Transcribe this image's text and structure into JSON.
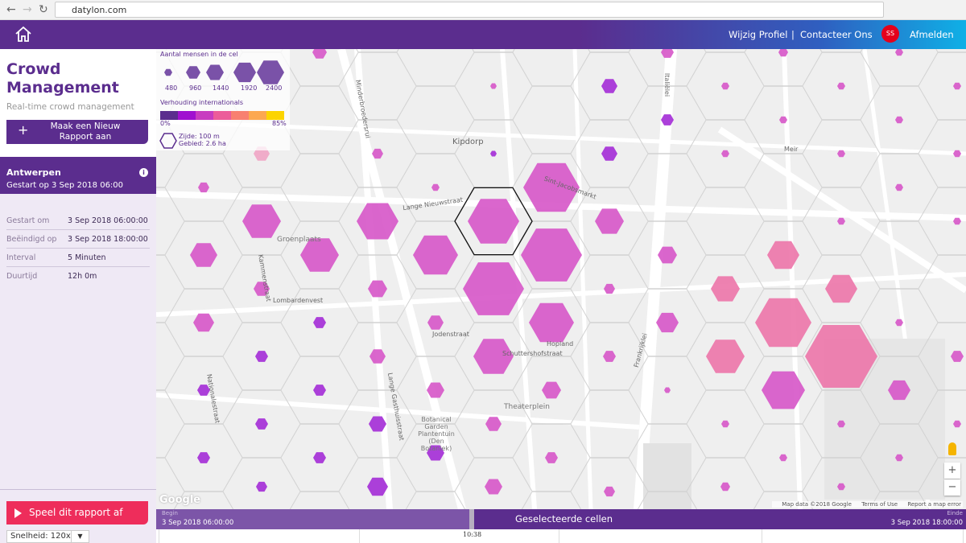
{
  "browser": {
    "url": "datylon.com"
  },
  "header": {
    "home_icon": "home-icon",
    "edit_profile": "Wijzig Profiel",
    "separator": "|",
    "contact": "Contacteer Ons",
    "avatar_initials": "SS",
    "logout": "Afmelden",
    "accent": "#5b2d8e",
    "avatar_color": "#e4001b"
  },
  "sidebar": {
    "title": "Crowd Management",
    "subtitle": "Real-time crowd management",
    "new_report_plus": "+",
    "new_report_label": "Maak een Nieuw Rapport aan",
    "report": {
      "city": "Antwerpen",
      "started": "Gestart op 3 Sep 2018 06:00",
      "info_icon": "i"
    },
    "meta": [
      {
        "label": "Gestart om",
        "value": "3 Sep 2018 06:00:00"
      },
      {
        "label": "Beëindigd op",
        "value": "3 Sep 2018 18:00:00"
      },
      {
        "label": "Interval",
        "value": "5 Minuten"
      },
      {
        "label": "Duurtijd",
        "value": "12h 0m"
      }
    ],
    "play_label": "Speel dit rapport af",
    "speed_label": "Snelheid: 120x",
    "speed_dropdown": "▼",
    "play_color": "#ee2d5b"
  },
  "legend": {
    "size_title": "Aantal mensen in de cel",
    "sizes": [
      "480",
      "960",
      "1440",
      "1920",
      "2400"
    ],
    "ratio_title": "Verhouding internationals",
    "ratio_min": "0%",
    "ratio_max": "85%",
    "ramp_colors": [
      "#5b2d8e",
      "#a010d0",
      "#c83cc0",
      "#ec5c9a",
      "#f88070",
      "#fca850",
      "#fcd400"
    ],
    "cell_side": "Zijde: 100 m",
    "cell_area": "Gebied: 2.6 ha"
  },
  "map": {
    "streets": [
      "Kipdorp",
      "Lange Nieuwstraat",
      "Sint-Jacobsmarkt",
      "Groenplaats",
      "Theaterplein",
      "Italiëlei",
      "Minderbroedersrui",
      "Meir",
      "Schuttershofstraat",
      "Jodenstraat",
      "Hopland",
      "Frankrijklei",
      "Lange Gasthuisstraat",
      "Kammenstraat",
      "Nationalestraat",
      "Lombardenvest"
    ],
    "poi": "Botanical Garden Plantentuin (Den Botaniek)",
    "google": "Google",
    "attribution": [
      "Map data ©2018 Google",
      "Terms of Use",
      "Report a map error"
    ],
    "zoom_in": "+",
    "zoom_out": "−"
  },
  "timeline": {
    "begin_label": "Begin",
    "begin_value": "3 Sep 2018 06:00:00",
    "center_label": "Geselecteerde cellen",
    "end_label": "Einde",
    "end_value": "3 Sep 2018 18:00:00",
    "current_time": "10:38"
  }
}
